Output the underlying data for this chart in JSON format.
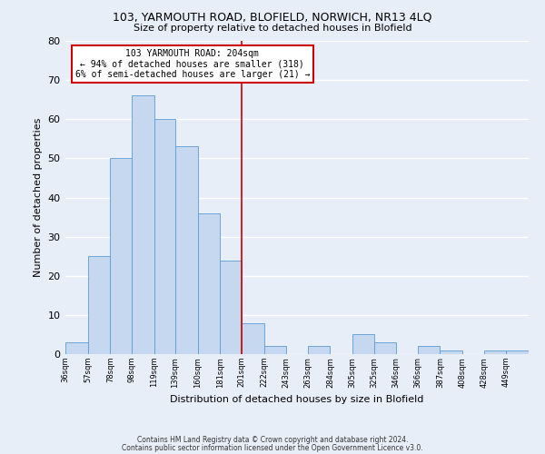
{
  "title1": "103, YARMOUTH ROAD, BLOFIELD, NORWICH, NR13 4LQ",
  "title2": "Size of property relative to detached houses in Blofield",
  "xlabel": "Distribution of detached houses by size in Blofield",
  "ylabel": "Number of detached properties",
  "bin_labels": [
    "36sqm",
    "57sqm",
    "78sqm",
    "98sqm",
    "119sqm",
    "139sqm",
    "160sqm",
    "181sqm",
    "201sqm",
    "222sqm",
    "243sqm",
    "263sqm",
    "284sqm",
    "305sqm",
    "325sqm",
    "346sqm",
    "366sqm",
    "387sqm",
    "408sqm",
    "428sqm",
    "449sqm"
  ],
  "bin_edges": [
    36,
    57,
    78,
    98,
    119,
    139,
    160,
    181,
    201,
    222,
    243,
    263,
    284,
    305,
    325,
    346,
    366,
    387,
    408,
    428,
    449,
    470
  ],
  "bar_heights": [
    3,
    25,
    50,
    66,
    60,
    53,
    36,
    24,
    8,
    2,
    0,
    2,
    0,
    5,
    3,
    0,
    2,
    1,
    0,
    1,
    1
  ],
  "bar_color": "#c5d8f0",
  "bar_edgecolor": "#5b9bd5",
  "property_line_x": 201,
  "property_line_color": "#cc0000",
  "annotation_title": "103 YARMOUTH ROAD: 204sqm",
  "annotation_line1": "← 94% of detached houses are smaller (318)",
  "annotation_line2": "6% of semi-detached houses are larger (21) →",
  "annotation_box_edgecolor": "#cc0000",
  "ylim": [
    0,
    80
  ],
  "yticks": [
    0,
    10,
    20,
    30,
    40,
    50,
    60,
    70,
    80
  ],
  "footnote1": "Contains HM Land Registry data © Crown copyright and database right 2024.",
  "footnote2": "Contains public sector information licensed under the Open Government Licence v3.0.",
  "background_color": "#e8eef8",
  "grid_color": "#ffffff"
}
